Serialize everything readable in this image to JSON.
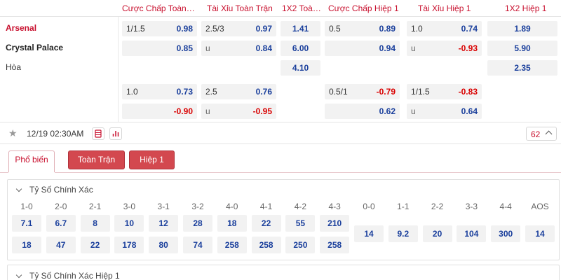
{
  "header": {
    "cols": [
      "Cược Chấp Toàn…",
      "Tài Xỉu Toàn Trận",
      "1X2 Toà…",
      "Cược Chấp Hiệp 1",
      "Tài Xỉu Hiệp 1",
      "1X2 Hiệp 1"
    ]
  },
  "match": {
    "home": "Arsenal",
    "away": "Crystal Palace",
    "draw": "Hòa",
    "rows": {
      "r1": {
        "ah_line": "1/1.5",
        "ah_odd": "0.98",
        "ou_line": "2.5/3",
        "ou_odd": "0.97",
        "x12": "1.41",
        "ah1_line": "0.5",
        "ah1_odd": "0.89",
        "ou1_line": "1.0",
        "ou1_odd": "0.74",
        "x12_1": "1.89"
      },
      "r2": {
        "ah_odd": "0.85",
        "ou_line": "u",
        "ou_odd": "0.84",
        "x12": "6.00",
        "ah1_odd": "0.94",
        "ou1_line": "u",
        "ou1_odd": "-0.93",
        "x12_1": "5.90"
      },
      "r3": {
        "x12": "4.10",
        "x12_1": "2.35"
      },
      "r4": {
        "ah_line": "1.0",
        "ah_odd": "0.73",
        "ou_line": "2.5",
        "ou_odd": "0.76",
        "ah1_line": "0.5/1",
        "ah1_odd": "-0.79",
        "ou1_line": "1/1.5",
        "ou1_odd": "-0.83"
      },
      "r5": {
        "ah_odd": "-0.90",
        "ou_line": "u",
        "ou_odd": "-0.95",
        "ah1_odd": "0.62",
        "ou1_line": "u",
        "ou1_odd": "0.64"
      }
    },
    "time": "12/19 02:30AM",
    "more_count": "62"
  },
  "tabs": [
    "Phổ biến",
    "Toàn Trận",
    "Hiệp 1"
  ],
  "correct_score": {
    "title": "Tỷ Số Chính Xác",
    "labels": [
      "1-0",
      "2-0",
      "2-1",
      "3-0",
      "3-1",
      "3-2",
      "4-0",
      "4-1",
      "4-2",
      "4-3",
      "0-0",
      "1-1",
      "2-2",
      "3-3",
      "4-4",
      "AOS"
    ],
    "home_odds": [
      "7.1",
      "6.7",
      "8",
      "10",
      "12",
      "28",
      "18",
      "22",
      "55",
      "210"
    ],
    "away_odds": [
      "18",
      "47",
      "22",
      "178",
      "80",
      "74",
      "258",
      "258",
      "250",
      "258"
    ],
    "draw_odds": [
      "14",
      "9.2",
      "20",
      "104",
      "300",
      "14"
    ]
  },
  "correct_score_h1": {
    "title": "Tỷ Số Chính Xác Hiệp 1"
  },
  "colors": {
    "accent": "#c8102e",
    "odd_blue": "#1a3f9c",
    "odd_red": "#d90000",
    "tab_red": "#d3484f"
  }
}
